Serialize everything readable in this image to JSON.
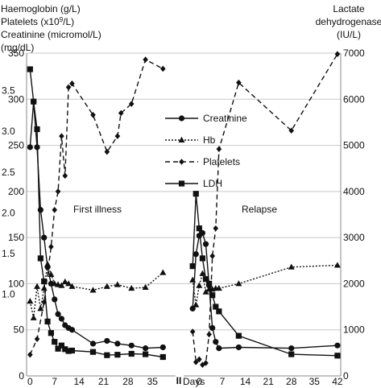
{
  "chart_data": {
    "type": "line",
    "left_axis": {
      "title_lines": [
        "Haemoglobin (g/L)",
        "Platelets (x10⁹/L)",
        "Creatinine (micromol/L)",
        "(mg/dL)"
      ],
      "ticks": [
        0,
        50,
        100,
        150,
        200,
        250,
        300,
        350
      ],
      "range": [
        0,
        350
      ],
      "mgdl_ticks": [
        "3.5",
        "3.0",
        "2.5",
        "2.0",
        "1.5",
        "1.0"
      ],
      "mgdl_values": [
        309.4,
        265.2,
        221.0,
        176.8,
        132.6,
        88.4
      ]
    },
    "right_axis": {
      "title_lines": [
        "Lactate",
        "dehydrogenase",
        "(IU/L)"
      ],
      "ticks": [
        0,
        1000,
        2000,
        3000,
        4000,
        5000,
        6000,
        7000
      ],
      "range": [
        0,
        7000
      ]
    },
    "x_axis": {
      "label": "Days",
      "break_symbol": "II",
      "first_ticks": [
        0,
        7,
        14,
        21,
        28,
        35
      ],
      "first_range": [
        -1,
        40
      ],
      "relapse_ticks": [
        0,
        7,
        14,
        21,
        28,
        35,
        42
      ],
      "relapse_range": [
        -4,
        43
      ]
    },
    "grid": true,
    "legend_position": "upper right, inside plot",
    "annotations": [
      "First illness",
      "Relapse"
    ],
    "legend": [
      {
        "name": "Creatinine",
        "marker": "circle",
        "dash": "solid"
      },
      {
        "name": "Hb",
        "marker": "triangle",
        "dash": "dotted"
      },
      {
        "name": "Platelets",
        "marker": "diamond",
        "dash": "dashed"
      },
      {
        "name": "LDH",
        "marker": "square",
        "dash": "solid"
      }
    ],
    "series": [
      {
        "name": "Creatinine",
        "axis": "left",
        "marker": "circle",
        "dash": "solid",
        "first": [
          [
            0,
            248
          ],
          [
            1,
            297
          ],
          [
            2,
            248
          ],
          [
            3,
            180
          ],
          [
            4,
            150
          ],
          [
            5,
            118
          ],
          [
            6,
            100
          ],
          [
            7,
            83
          ],
          [
            8,
            67
          ],
          [
            9,
            62
          ],
          [
            10,
            55
          ],
          [
            11,
            52
          ],
          [
            12,
            50
          ],
          [
            18,
            35
          ],
          [
            22,
            38
          ],
          [
            25,
            35
          ],
          [
            29,
            33
          ],
          [
            33,
            30
          ],
          [
            38,
            31
          ]
        ],
        "relapse": [
          [
            -2,
            73
          ],
          [
            -1,
            132
          ],
          [
            0,
            152
          ],
          [
            1,
            155
          ],
          [
            2,
            143
          ],
          [
            3,
            98
          ],
          [
            4,
            52
          ],
          [
            5,
            37
          ],
          [
            6,
            30
          ],
          [
            12,
            31
          ],
          [
            28,
            30
          ],
          [
            42,
            33
          ]
        ]
      },
      {
        "name": "Hb",
        "axis": "left",
        "marker": "triangle",
        "dash": "dotted",
        "first": [
          [
            0,
            81
          ],
          [
            1,
            63
          ],
          [
            2,
            97
          ],
          [
            3,
            73
          ],
          [
            4,
            95
          ],
          [
            5,
            121
          ],
          [
            6,
            110
          ],
          [
            7,
            100
          ],
          [
            8,
            99
          ],
          [
            9,
            98
          ],
          [
            10,
            102
          ],
          [
            11,
            100
          ],
          [
            12,
            97
          ],
          [
            18,
            93
          ],
          [
            22,
            97
          ],
          [
            25,
            99
          ],
          [
            29,
            95
          ],
          [
            33,
            96
          ],
          [
            38,
            112
          ]
        ],
        "relapse": [
          [
            -2,
            104
          ],
          [
            -1,
            77
          ],
          [
            0,
            98
          ],
          [
            1,
            111
          ],
          [
            2,
            91
          ],
          [
            3,
            94
          ],
          [
            4,
            94
          ],
          [
            5,
            95
          ],
          [
            6,
            95
          ],
          [
            12,
            100
          ],
          [
            28,
            118
          ],
          [
            42,
            120
          ]
        ]
      },
      {
        "name": "Platelets",
        "axis": "left",
        "marker": "diamond",
        "dash": "dashed",
        "first": [
          [
            0,
            23
          ],
          [
            2,
            40
          ],
          [
            4,
            80
          ],
          [
            6,
            140
          ],
          [
            7,
            180
          ],
          [
            8,
            200
          ],
          [
            9,
            260
          ],
          [
            10,
            217
          ],
          [
            11,
            313
          ],
          [
            12,
            317
          ],
          [
            18,
            283
          ],
          [
            22,
            243
          ],
          [
            25,
            260
          ],
          [
            26,
            285
          ],
          [
            29,
            295
          ],
          [
            33,
            343
          ],
          [
            38,
            333
          ]
        ],
        "relapse": [
          [
            -2,
            48
          ],
          [
            -1,
            15
          ],
          [
            0,
            18
          ],
          [
            1,
            12
          ],
          [
            2,
            14
          ],
          [
            3,
            45
          ],
          [
            4,
            130
          ],
          [
            5,
            160
          ],
          [
            6,
            246
          ],
          [
            12,
            318
          ],
          [
            28,
            266
          ],
          [
            42,
            349
          ]
        ]
      },
      {
        "name": "LDH",
        "axis": "right",
        "marker": "square",
        "dash": "solid",
        "first": [
          [
            0,
            6650
          ],
          [
            1,
            5950
          ],
          [
            2,
            5350
          ],
          [
            3,
            2550
          ],
          [
            4,
            2050
          ],
          [
            5,
            1180
          ],
          [
            6,
            930
          ],
          [
            7,
            740
          ],
          [
            8,
            590
          ],
          [
            9,
            660
          ],
          [
            10,
            580
          ],
          [
            11,
            540
          ],
          [
            12,
            550
          ],
          [
            18,
            520
          ],
          [
            22,
            450
          ],
          [
            25,
            460
          ],
          [
            29,
            480
          ],
          [
            33,
            470
          ],
          [
            38,
            410
          ]
        ],
        "relapse": [
          [
            -2,
            2380
          ],
          [
            -1,
            3950
          ],
          [
            0,
            3200
          ],
          [
            1,
            2550
          ],
          [
            2,
            2100
          ],
          [
            3,
            2000
          ],
          [
            4,
            1750
          ],
          [
            5,
            1500
          ],
          [
            6,
            1400
          ],
          [
            12,
            870
          ],
          [
            28,
            470
          ],
          [
            42,
            440
          ]
        ]
      }
    ]
  }
}
